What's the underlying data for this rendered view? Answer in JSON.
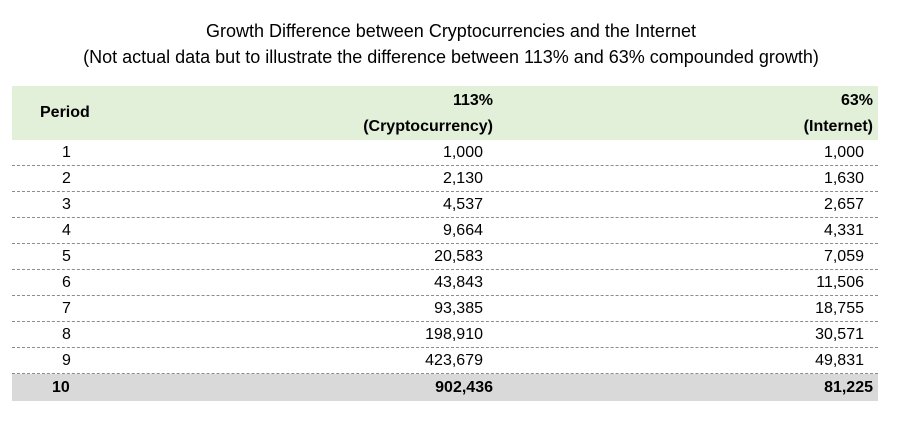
{
  "chart_data": {
    "type": "table",
    "title": "Growth Difference between Cryptocurrencies and the Internet",
    "subtitle": "(Not actual data but to illustrate the difference between 113% and 63% compounded growth)",
    "columns": [
      {
        "header": "Period"
      },
      {
        "header_line1": "113%",
        "header_line2": "(Cryptocurrency)"
      },
      {
        "header_line1": "63%",
        "header_line2": "(Internet)"
      }
    ],
    "rows": [
      {
        "period": "1",
        "crypto": "1,000",
        "internet": "1,000"
      },
      {
        "period": "2",
        "crypto": "2,130",
        "internet": "1,630"
      },
      {
        "period": "3",
        "crypto": "4,537",
        "internet": "2,657"
      },
      {
        "period": "4",
        "crypto": "9,664",
        "internet": "4,331"
      },
      {
        "period": "5",
        "crypto": "20,583",
        "internet": "7,059"
      },
      {
        "period": "6",
        "crypto": "43,843",
        "internet": "11,506"
      },
      {
        "period": "7",
        "crypto": "93,385",
        "internet": "18,755"
      },
      {
        "period": "8",
        "crypto": "198,910",
        "internet": "30,571"
      },
      {
        "period": "9",
        "crypto": "423,679",
        "internet": "49,831"
      },
      {
        "period": "10",
        "crypto": "902,436",
        "internet": "81,225"
      }
    ],
    "header_color": "#e2efd9",
    "total_row_color": "#d9d9d9"
  }
}
